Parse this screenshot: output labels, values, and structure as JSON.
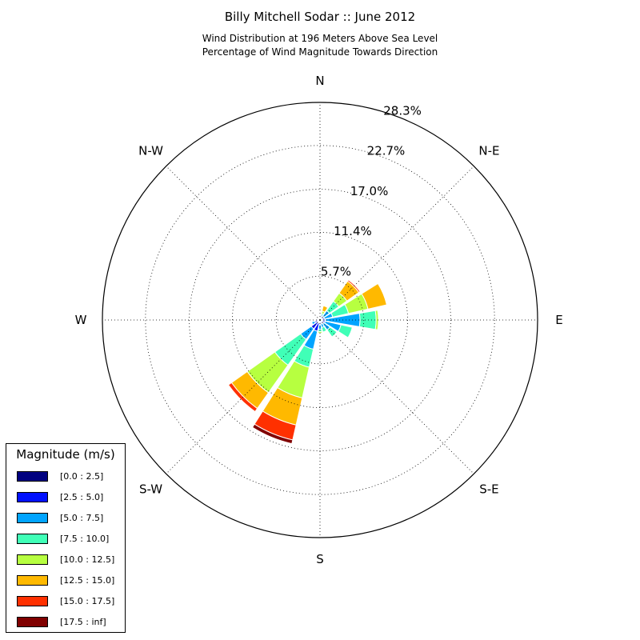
{
  "title": "Billy Mitchell Sodar :: June 2012",
  "subtitle_line1": "Wind Distribution at 196 Meters Above Sea Level",
  "subtitle_line2": "Percentage of Wind Magnitude Towards Direction",
  "chart_data": {
    "type": "windrose",
    "directions": [
      {
        "label": "N",
        "angle": 0
      },
      {
        "label": "N-E",
        "angle": 45
      },
      {
        "label": "E",
        "angle": 90
      },
      {
        "label": "S-E",
        "angle": 135
      },
      {
        "label": "S",
        "angle": 180
      },
      {
        "label": "S-W",
        "angle": 225
      },
      {
        "label": "W",
        "angle": 270
      },
      {
        "label": "N-W",
        "angle": 315
      }
    ],
    "radial_ticks": [
      {
        "value": 5.7,
        "label": "5.7%"
      },
      {
        "value": 11.4,
        "label": "11.4%"
      },
      {
        "value": 17.0,
        "label": "17.0%"
      },
      {
        "value": 22.7,
        "label": "22.7%"
      },
      {
        "value": 28.3,
        "label": "28.3%"
      }
    ],
    "rmax": 28.3,
    "bin_width_deg": 22.5,
    "legend_title": "Magnitude (m/s)",
    "bins": [
      {
        "label": "[0.0 : 2.5]",
        "color": "#000080"
      },
      {
        "label": "[2.5 : 5.0]",
        "color": "#0010ff"
      },
      {
        "label": "[5.0 : 7.5]",
        "color": "#00a4ff"
      },
      {
        "label": "[7.5 : 10.0]",
        "color": "#40ffb7"
      },
      {
        "label": "[10.0 : 12.5]",
        "color": "#b7ff40"
      },
      {
        "label": "[12.5 : 15.0]",
        "color": "#ffb900"
      },
      {
        "label": "[15.0 : 17.5]",
        "color": "#ff3000"
      },
      {
        "label": "[17.5 : inf]",
        "color": "#800000"
      }
    ],
    "sectors": [
      {
        "direction": 22.5,
        "cumulative": [
          0.3,
          0.5,
          0.7,
          0.9,
          1.2,
          1.9,
          2.0,
          2.0
        ]
      },
      {
        "direction": 45,
        "cumulative": [
          0.3,
          0.6,
          1.5,
          3.0,
          4.3,
          6.2,
          6.4,
          6.5
        ]
      },
      {
        "direction": 67.5,
        "cumulative": [
          0.3,
          0.6,
          1.7,
          3.8,
          6.4,
          8.9,
          8.9,
          8.9
        ]
      },
      {
        "direction": 90,
        "cumulative": [
          0.3,
          0.7,
          5.2,
          7.3,
          7.6,
          7.6,
          7.6,
          7.6
        ]
      },
      {
        "direction": 112.5,
        "cumulative": [
          0.3,
          0.7,
          2.8,
          4.3,
          4.3,
          4.3,
          4.3,
          4.3
        ]
      },
      {
        "direction": 135,
        "cumulative": [
          0.3,
          0.6,
          1.6,
          2.7,
          2.7,
          2.7,
          2.7,
          2.7
        ]
      },
      {
        "direction": 157.5,
        "cumulative": [
          0.3,
          0.5,
          1.0,
          1.6,
          1.6,
          1.6,
          1.6,
          1.6
        ]
      },
      {
        "direction": 180,
        "cumulative": [
          0.3,
          0.6,
          1.2,
          1.5,
          1.7,
          1.7,
          1.7,
          1.7
        ]
      },
      {
        "direction": 202.5,
        "cumulative": [
          0.4,
          1.5,
          3.9,
          6.3,
          10.4,
          14.0,
          16.0,
          16.5
        ]
      },
      {
        "direction": 225,
        "cumulative": [
          0.4,
          1.4,
          3.1,
          7.2,
          11.6,
          14.1,
          14.6,
          14.6
        ]
      },
      {
        "direction": 247.5,
        "cumulative": [
          0.3,
          0.7,
          1.1,
          1.1,
          1.1,
          1.1,
          1.1,
          1.1
        ]
      },
      {
        "direction": 270,
        "cumulative": [
          0.3,
          0.5,
          0.5,
          0.5,
          0.5,
          0.5,
          0.5,
          0.5
        ]
      }
    ]
  }
}
